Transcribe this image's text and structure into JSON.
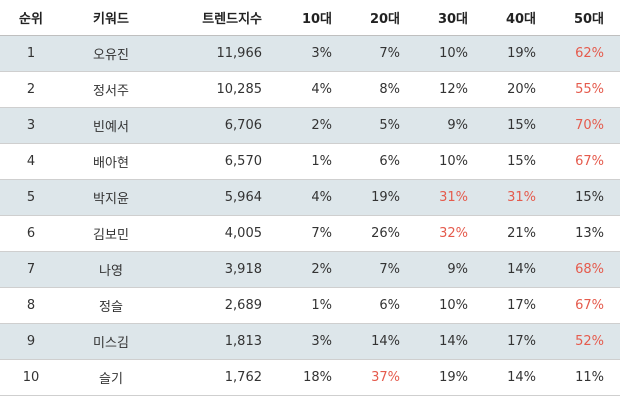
{
  "headers": {
    "rank": "순위",
    "keyword": "키워드",
    "trend": "트렌드지수",
    "age10": "10대",
    "age20": "20대",
    "age30": "30대",
    "age40": "40대",
    "age50": "50대"
  },
  "highlight_color": "#e55b4d",
  "rows": [
    {
      "rank": "1",
      "keyword": "오유진",
      "trend": "11,966",
      "age10": "3%",
      "age20": "7%",
      "age30": "10%",
      "age40": "19%",
      "age50": "62%"
    },
    {
      "rank": "2",
      "keyword": "정서주",
      "trend": "10,285",
      "age10": "4%",
      "age20": "8%",
      "age30": "12%",
      "age40": "20%",
      "age50": "55%"
    },
    {
      "rank": "3",
      "keyword": "빈예서",
      "trend": "6,706",
      "age10": "2%",
      "age20": "5%",
      "age30": "9%",
      "age40": "15%",
      "age50": "70%"
    },
    {
      "rank": "4",
      "keyword": "배아현",
      "trend": "6,570",
      "age10": "1%",
      "age20": "6%",
      "age30": "10%",
      "age40": "15%",
      "age50": "67%"
    },
    {
      "rank": "5",
      "keyword": "박지윤",
      "trend": "5,964",
      "age10": "4%",
      "age20": "19%",
      "age30": "31%",
      "age40": "31%",
      "age50": "15%"
    },
    {
      "rank": "6",
      "keyword": "김보민",
      "trend": "4,005",
      "age10": "7%",
      "age20": "26%",
      "age30": "32%",
      "age40": "21%",
      "age50": "13%"
    },
    {
      "rank": "7",
      "keyword": "나영",
      "trend": "3,918",
      "age10": "2%",
      "age20": "7%",
      "age30": "9%",
      "age40": "14%",
      "age50": "68%"
    },
    {
      "rank": "8",
      "keyword": "정슬",
      "trend": "2,689",
      "age10": "1%",
      "age20": "6%",
      "age30": "10%",
      "age40": "17%",
      "age50": "67%"
    },
    {
      "rank": "9",
      "keyword": "미스김",
      "trend": "1,813",
      "age10": "3%",
      "age20": "14%",
      "age30": "14%",
      "age40": "17%",
      "age50": "52%"
    },
    {
      "rank": "10",
      "keyword": "슬기",
      "trend": "1,762",
      "age10": "18%",
      "age20": "37%",
      "age30": "19%",
      "age40": "14%",
      "age50": "11%"
    }
  ]
}
